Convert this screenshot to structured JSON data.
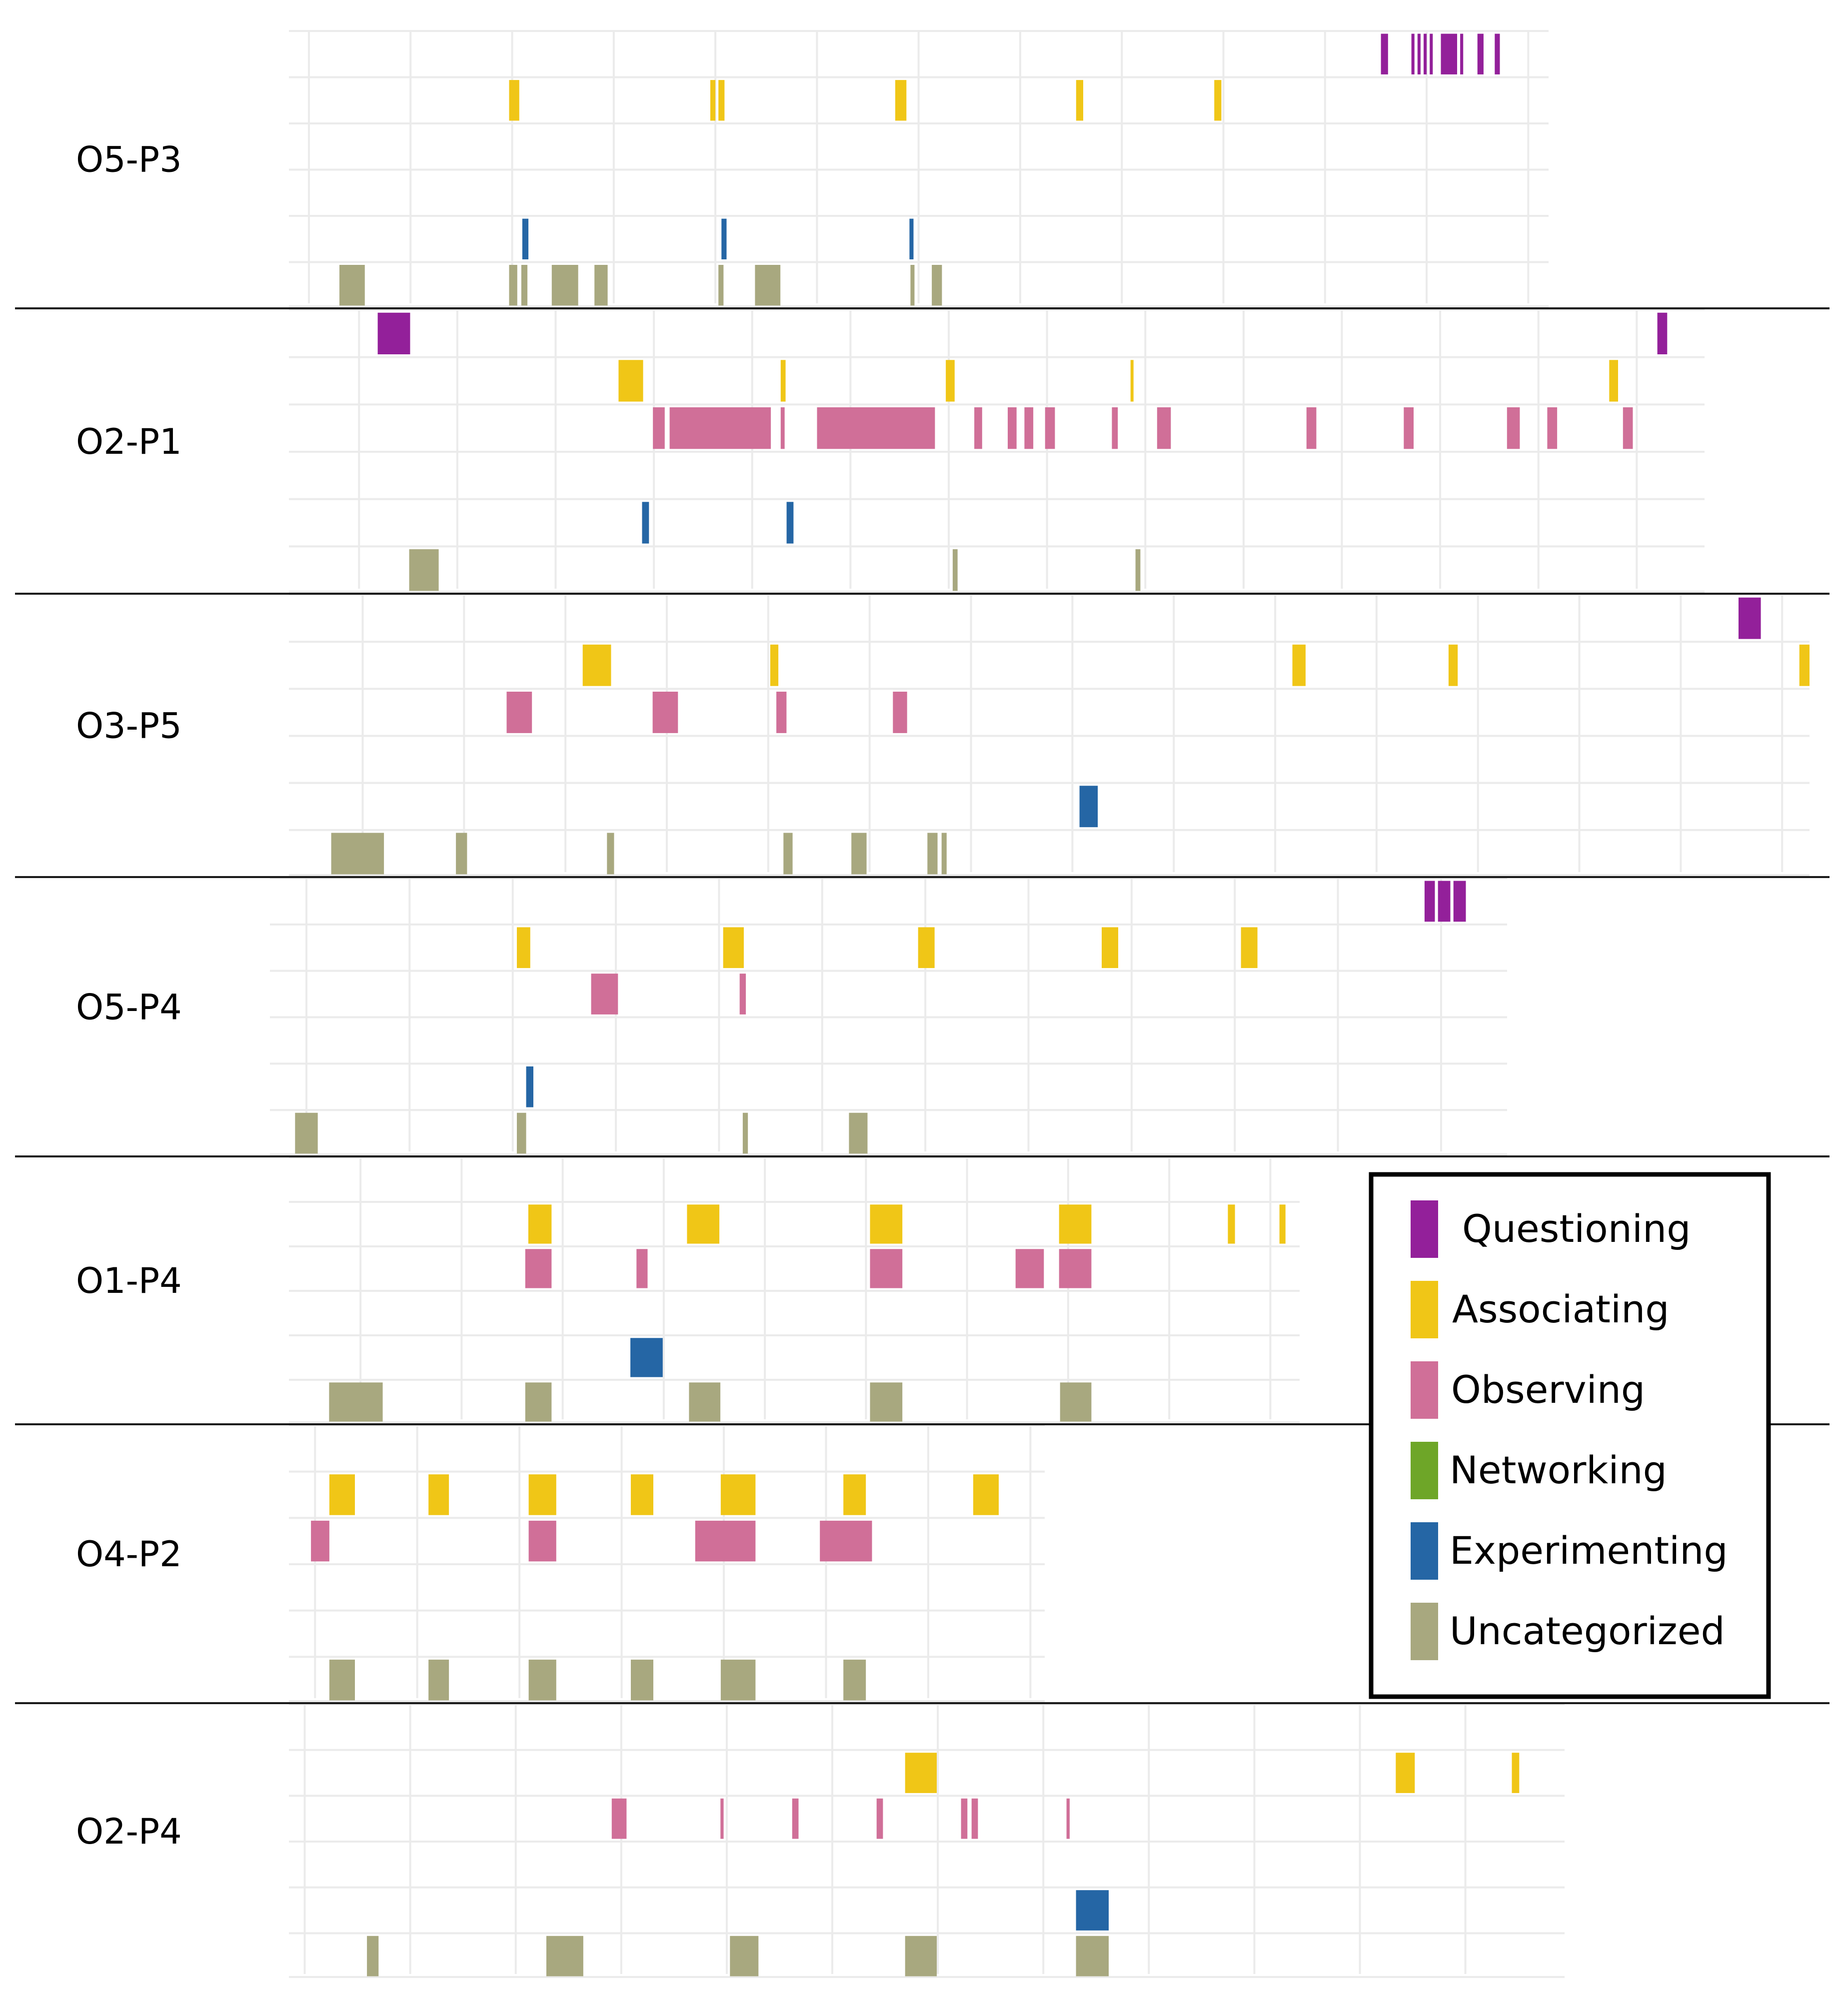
{
  "chart_data": {
    "type": "timeline",
    "title": "",
    "time_unit": "grid divisions",
    "colors": {
      "Questioning": "#93209a",
      "Associating": "#f0c617",
      "Observing": "#d06f98",
      "Networking": "#6ea628",
      "Experimenting": "#2566a5",
      "Uncategorized": "#a8a87f"
    },
    "lane_order": [
      "Questioning",
      "Associating",
      "Observing",
      "Networking",
      "Experimenting",
      "Uncategorized"
    ],
    "legend": {
      "entries": [
        {
          "label": "Questioning",
          "color": "#93209a"
        },
        {
          "label": "Associating",
          "color": "#f0c617"
        },
        {
          "label": "Observing",
          "color": "#d06f98"
        },
        {
          "label": "Networking",
          "color": "#6ea628"
        },
        {
          "label": "Experimenting",
          "color": "#2566a5"
        },
        {
          "label": "Uncategorized",
          "color": "#a8a87f"
        }
      ]
    },
    "panels": [
      {
        "label": "O5-P3",
        "x_max": 12.2,
        "events": [
          {
            "cat": "Questioning",
            "start": 10.55,
            "end": 10.62
          },
          {
            "cat": "Questioning",
            "start": 10.85,
            "end": 10.88
          },
          {
            "cat": "Questioning",
            "start": 10.91,
            "end": 10.94
          },
          {
            "cat": "Questioning",
            "start": 10.97,
            "end": 11.0
          },
          {
            "cat": "Questioning",
            "start": 11.03,
            "end": 11.06
          },
          {
            "cat": "Questioning",
            "start": 11.14,
            "end": 11.3
          },
          {
            "cat": "Questioning",
            "start": 11.33,
            "end": 11.36
          },
          {
            "cat": "Questioning",
            "start": 11.5,
            "end": 11.56
          },
          {
            "cat": "Questioning",
            "start": 11.67,
            "end": 11.72
          },
          {
            "cat": "Associating",
            "start": 1.97,
            "end": 2.07
          },
          {
            "cat": "Associating",
            "start": 3.95,
            "end": 4.0
          },
          {
            "cat": "Associating",
            "start": 4.03,
            "end": 4.09
          },
          {
            "cat": "Associating",
            "start": 5.77,
            "end": 5.88
          },
          {
            "cat": "Associating",
            "start": 7.55,
            "end": 7.62
          },
          {
            "cat": "Associating",
            "start": 8.91,
            "end": 8.98
          },
          {
            "cat": "Experimenting",
            "start": 2.1,
            "end": 2.16
          },
          {
            "cat": "Experimenting",
            "start": 4.06,
            "end": 4.11
          },
          {
            "cat": "Experimenting",
            "start": 5.91,
            "end": 5.95
          },
          {
            "cat": "Uncategorized",
            "start": 0.3,
            "end": 0.55
          },
          {
            "cat": "Uncategorized",
            "start": 1.97,
            "end": 2.05
          },
          {
            "cat": "Uncategorized",
            "start": 2.09,
            "end": 2.15
          },
          {
            "cat": "Uncategorized",
            "start": 2.39,
            "end": 2.65
          },
          {
            "cat": "Uncategorized",
            "start": 2.81,
            "end": 2.94
          },
          {
            "cat": "Uncategorized",
            "start": 4.03,
            "end": 4.08
          },
          {
            "cat": "Uncategorized",
            "start": 4.39,
            "end": 4.64
          },
          {
            "cat": "Uncategorized",
            "start": 5.92,
            "end": 5.96
          },
          {
            "cat": "Uncategorized",
            "start": 6.13,
            "end": 6.23
          }
        ]
      },
      {
        "label": "O2-P1",
        "x_max": 14.2,
        "events": [
          {
            "cat": "Questioning",
            "start": 0.7,
            "end": 1.03
          },
          {
            "cat": "Questioning",
            "start": 13.72,
            "end": 13.82
          },
          {
            "cat": "Associating",
            "start": 3.15,
            "end": 3.4
          },
          {
            "cat": "Associating",
            "start": 4.8,
            "end": 4.85
          },
          {
            "cat": "Associating",
            "start": 6.48,
            "end": 6.57
          },
          {
            "cat": "Associating",
            "start": 8.36,
            "end": 8.39
          },
          {
            "cat": "Associating",
            "start": 13.23,
            "end": 13.32
          },
          {
            "cat": "Observing",
            "start": 3.5,
            "end": 3.62
          },
          {
            "cat": "Observing",
            "start": 3.67,
            "end": 4.7
          },
          {
            "cat": "Observing",
            "start": 4.8,
            "end": 4.84
          },
          {
            "cat": "Observing",
            "start": 5.17,
            "end": 6.37
          },
          {
            "cat": "Observing",
            "start": 6.77,
            "end": 6.85
          },
          {
            "cat": "Observing",
            "start": 7.11,
            "end": 7.2
          },
          {
            "cat": "Observing",
            "start": 7.28,
            "end": 7.37
          },
          {
            "cat": "Observing",
            "start": 7.49,
            "end": 7.59
          },
          {
            "cat": "Observing",
            "start": 8.17,
            "end": 8.23
          },
          {
            "cat": "Observing",
            "start": 8.63,
            "end": 8.77
          },
          {
            "cat": "Observing",
            "start": 10.15,
            "end": 10.25
          },
          {
            "cat": "Observing",
            "start": 11.14,
            "end": 11.24
          },
          {
            "cat": "Observing",
            "start": 12.19,
            "end": 12.32
          },
          {
            "cat": "Observing",
            "start": 12.6,
            "end": 12.7
          },
          {
            "cat": "Observing",
            "start": 13.37,
            "end": 13.47
          },
          {
            "cat": "Experimenting",
            "start": 3.39,
            "end": 3.46
          },
          {
            "cat": "Experimenting",
            "start": 4.86,
            "end": 4.93
          },
          {
            "cat": "Uncategorized",
            "start": 1.02,
            "end": 1.32
          },
          {
            "cat": "Uncategorized",
            "start": 6.55,
            "end": 6.6
          },
          {
            "cat": "Uncategorized",
            "start": 8.41,
            "end": 8.46
          }
        ]
      },
      {
        "label": "O3-P5",
        "x_max": 14.8,
        "events": [
          {
            "cat": "Questioning",
            "start": 14.1,
            "end": 14.32
          },
          {
            "cat": "Associating",
            "start": 2.7,
            "end": 2.98
          },
          {
            "cat": "Associating",
            "start": 4.55,
            "end": 4.63
          },
          {
            "cat": "Associating",
            "start": 9.7,
            "end": 9.83
          },
          {
            "cat": "Associating",
            "start": 11.24,
            "end": 11.33
          },
          {
            "cat": "Associating",
            "start": 14.7,
            "end": 14.8
          },
          {
            "cat": "Observing",
            "start": 1.95,
            "end": 2.2
          },
          {
            "cat": "Observing",
            "start": 3.39,
            "end": 3.64
          },
          {
            "cat": "Observing",
            "start": 4.61,
            "end": 4.71
          },
          {
            "cat": "Observing",
            "start": 5.76,
            "end": 5.9
          },
          {
            "cat": "Experimenting",
            "start": 7.6,
            "end": 7.78
          },
          {
            "cat": "Uncategorized",
            "start": 0.22,
            "end": 0.74
          },
          {
            "cat": "Uncategorized",
            "start": 1.45,
            "end": 1.56
          },
          {
            "cat": "Uncategorized",
            "start": 2.94,
            "end": 3.01
          },
          {
            "cat": "Uncategorized",
            "start": 4.68,
            "end": 4.77
          },
          {
            "cat": "Uncategorized",
            "start": 5.35,
            "end": 5.5
          },
          {
            "cat": "Uncategorized",
            "start": 6.1,
            "end": 6.2
          },
          {
            "cat": "Uncategorized",
            "start": 6.24,
            "end": 6.29
          }
        ]
      },
      {
        "label": "O5-P4",
        "x_max": 11.8,
        "events": [
          {
            "cat": "Questioning",
            "start": 11.0,
            "end": 11.1
          },
          {
            "cat": "Questioning",
            "start": 11.13,
            "end": 11.25
          },
          {
            "cat": "Questioning",
            "start": 11.28,
            "end": 11.4
          },
          {
            "cat": "Associating",
            "start": 2.2,
            "end": 2.33
          },
          {
            "cat": "Associating",
            "start": 4.2,
            "end": 4.4
          },
          {
            "cat": "Associating",
            "start": 6.09,
            "end": 6.25
          },
          {
            "cat": "Associating",
            "start": 7.87,
            "end": 8.03
          },
          {
            "cat": "Associating",
            "start": 9.22,
            "end": 9.38
          },
          {
            "cat": "Observing",
            "start": 2.92,
            "end": 3.18
          },
          {
            "cat": "Observing",
            "start": 4.36,
            "end": 4.42
          },
          {
            "cat": "Experimenting",
            "start": 2.29,
            "end": 2.36
          },
          {
            "cat": "Uncategorized",
            "start": 0.05,
            "end": 0.27
          },
          {
            "cat": "Uncategorized",
            "start": 2.2,
            "end": 2.29
          },
          {
            "cat": "Uncategorized",
            "start": 4.39,
            "end": 4.44
          },
          {
            "cat": "Uncategorized",
            "start": 5.42,
            "end": 5.6
          }
        ]
      },
      {
        "label": "O1-P4",
        "x_max": 9.8,
        "events": [
          {
            "cat": "Associating",
            "start": 2.17,
            "end": 2.4
          },
          {
            "cat": "Associating",
            "start": 3.74,
            "end": 4.06
          },
          {
            "cat": "Associating",
            "start": 5.55,
            "end": 5.87
          },
          {
            "cat": "Associating",
            "start": 7.42,
            "end": 7.74
          },
          {
            "cat": "Associating",
            "start": 9.09,
            "end": 9.16
          },
          {
            "cat": "Associating",
            "start": 9.6,
            "end": 9.66
          },
          {
            "cat": "Observing",
            "start": 2.14,
            "end": 2.4
          },
          {
            "cat": "Observing",
            "start": 3.24,
            "end": 3.35
          },
          {
            "cat": "Observing",
            "start": 5.55,
            "end": 5.87
          },
          {
            "cat": "Observing",
            "start": 6.99,
            "end": 7.27
          },
          {
            "cat": "Observing",
            "start": 7.42,
            "end": 7.74
          },
          {
            "cat": "Experimenting",
            "start": 3.18,
            "end": 3.5
          },
          {
            "cat": "Uncategorized",
            "start": 0.2,
            "end": 0.73
          },
          {
            "cat": "Uncategorized",
            "start": 2.14,
            "end": 2.4
          },
          {
            "cat": "Uncategorized",
            "start": 3.76,
            "end": 4.07
          },
          {
            "cat": "Uncategorized",
            "start": 5.55,
            "end": 5.87
          },
          {
            "cat": "Uncategorized",
            "start": 7.43,
            "end": 7.74
          }
        ]
      },
      {
        "label": "O4-P2",
        "x_max": 7.2,
        "events": [
          {
            "cat": "Associating",
            "start": 0.2,
            "end": 0.45
          },
          {
            "cat": "Associating",
            "start": 1.17,
            "end": 1.37
          },
          {
            "cat": "Associating",
            "start": 2.15,
            "end": 2.42
          },
          {
            "cat": "Associating",
            "start": 3.15,
            "end": 3.37
          },
          {
            "cat": "Associating",
            "start": 4.03,
            "end": 4.37
          },
          {
            "cat": "Associating",
            "start": 5.23,
            "end": 5.45
          },
          {
            "cat": "Associating",
            "start": 6.5,
            "end": 6.75
          },
          {
            "cat": "Observing",
            "start": 0.02,
            "end": 0.2
          },
          {
            "cat": "Observing",
            "start": 2.15,
            "end": 2.42
          },
          {
            "cat": "Observing",
            "start": 3.78,
            "end": 4.37
          },
          {
            "cat": "Observing",
            "start": 5.0,
            "end": 5.51
          },
          {
            "cat": "Uncategorized",
            "start": 0.2,
            "end": 0.45
          },
          {
            "cat": "Uncategorized",
            "start": 1.17,
            "end": 1.37
          },
          {
            "cat": "Uncategorized",
            "start": 2.15,
            "end": 2.42
          },
          {
            "cat": "Uncategorized",
            "start": 3.15,
            "end": 3.37
          },
          {
            "cat": "Uncategorized",
            "start": 4.03,
            "end": 4.37
          },
          {
            "cat": "Uncategorized",
            "start": 5.23,
            "end": 5.45
          }
        ]
      },
      {
        "label": "O2-P4",
        "x_max": 11.9,
        "events": [
          {
            "cat": "Associating",
            "start": 5.65,
            "end": 5.95
          },
          {
            "cat": "Associating",
            "start": 10.3,
            "end": 10.48
          },
          {
            "cat": "Associating",
            "start": 11.4,
            "end": 11.47
          },
          {
            "cat": "Observing",
            "start": 2.87,
            "end": 3.01
          },
          {
            "cat": "Observing",
            "start": 3.9,
            "end": 3.93
          },
          {
            "cat": "Observing",
            "start": 4.58,
            "end": 4.64
          },
          {
            "cat": "Observing",
            "start": 5.38,
            "end": 5.44
          },
          {
            "cat": "Observing",
            "start": 6.18,
            "end": 6.24
          },
          {
            "cat": "Observing",
            "start": 6.28,
            "end": 6.34
          },
          {
            "cat": "Observing",
            "start": 7.18,
            "end": 7.21
          },
          {
            "cat": "Experimenting",
            "start": 7.27,
            "end": 7.58
          },
          {
            "cat": "Uncategorized",
            "start": 0.55,
            "end": 0.66
          },
          {
            "cat": "Uncategorized",
            "start": 2.25,
            "end": 2.6
          },
          {
            "cat": "Uncategorized",
            "start": 3.99,
            "end": 4.26
          },
          {
            "cat": "Uncategorized",
            "start": 5.65,
            "end": 5.95
          },
          {
            "cat": "Uncategorized",
            "start": 7.27,
            "end": 7.58
          }
        ]
      }
    ]
  }
}
